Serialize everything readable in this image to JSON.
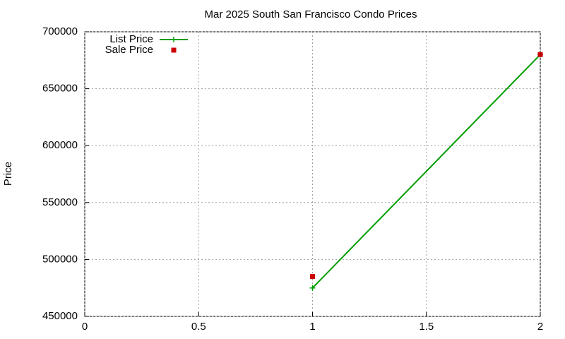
{
  "chart_data": {
    "type": "line",
    "title": "Mar 2025 South San Francisco Condo Prices",
    "y_label": "Price",
    "x": [
      1,
      2
    ],
    "series": [
      {
        "name": "List Price",
        "color": "#009e00",
        "mode": "lines+markers",
        "values": [
          475000,
          680000
        ]
      },
      {
        "name": "Sale Price",
        "color": "#cc0000",
        "mode": "markers",
        "values": [
          485000,
          680000
        ]
      }
    ],
    "xlim": [
      0,
      2
    ],
    "xticks": [
      0,
      0.5,
      1,
      1.5,
      2
    ],
    "ylim": [
      450000,
      700000
    ],
    "yticks": [
      450000,
      500000,
      550000,
      600000,
      650000,
      700000
    ],
    "grid": true,
    "legend": "top-left"
  }
}
